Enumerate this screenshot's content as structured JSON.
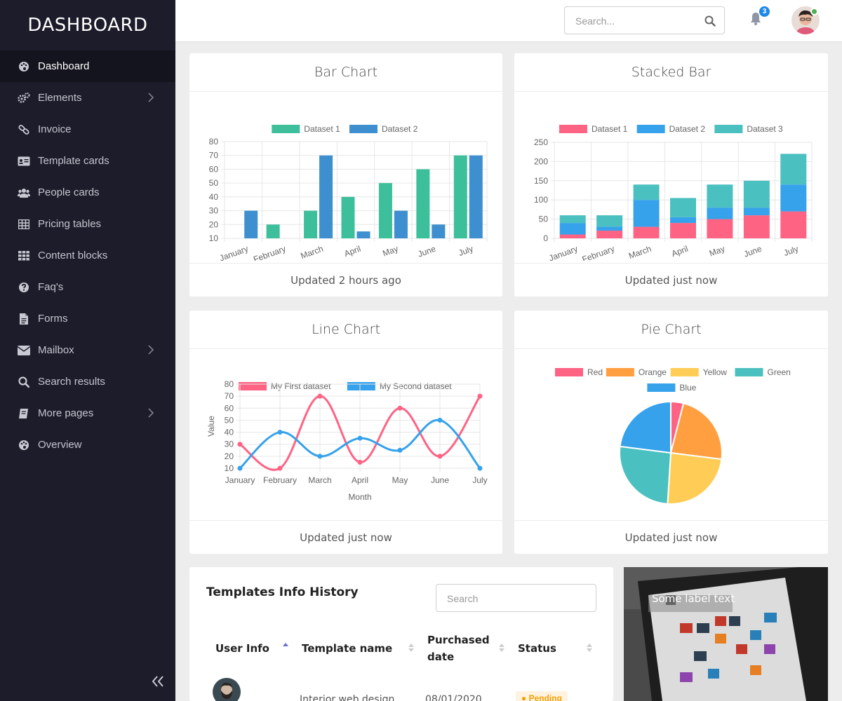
{
  "brand": "DASHBOARD",
  "sidebar": {
    "items": [
      {
        "label": "Dashboard",
        "icon": "palette-icon"
      },
      {
        "label": "Elements",
        "icon": "cogs-icon"
      },
      {
        "label": "Invoice",
        "icon": "link-icon"
      },
      {
        "label": "Template cards",
        "icon": "id-card-icon"
      },
      {
        "label": "People cards",
        "icon": "users-icon"
      },
      {
        "label": "Pricing tables",
        "icon": "table-icon"
      },
      {
        "label": "Content blocks",
        "icon": "grid-icon"
      },
      {
        "label": "Faq's",
        "icon": "question-icon"
      },
      {
        "label": "Forms",
        "icon": "file-icon"
      },
      {
        "label": "Mailbox",
        "icon": "envelope-icon"
      },
      {
        "label": "Search results",
        "icon": "search-icon"
      },
      {
        "label": "More pages",
        "icon": "book-icon"
      },
      {
        "label": "Overview",
        "icon": "palette-icon"
      }
    ]
  },
  "header": {
    "search_placeholder": "Search...",
    "notification_count": "3"
  },
  "cards": {
    "bar": {
      "title": "Bar Chart",
      "footer": "Updated 2 hours ago"
    },
    "stacked": {
      "title": "Stacked Bar",
      "footer": "Updated just now"
    },
    "line": {
      "title": "Line Chart",
      "footer": "Updated just now"
    },
    "pie": {
      "title": "Pie Chart",
      "footer": "Updated just now"
    }
  },
  "chart_data": [
    {
      "type": "bar",
      "categories": [
        "January",
        "February",
        "March",
        "April",
        "May",
        "June",
        "July"
      ],
      "series": [
        {
          "name": "Dataset 1",
          "color": "#3dbf9b",
          "values": [
            null,
            20,
            30,
            40,
            50,
            60,
            70
          ]
        },
        {
          "name": "Dataset 2",
          "color": "#3d8fcf",
          "values": [
            30,
            null,
            70,
            15,
            30,
            20,
            70
          ]
        }
      ],
      "ylim": [
        10,
        80
      ],
      "yticks": [
        10,
        20,
        30,
        40,
        50,
        60,
        70,
        80
      ],
      "legend": "top"
    },
    {
      "type": "bar",
      "stacked": true,
      "categories": [
        "January",
        "February",
        "March",
        "April",
        "May",
        "June",
        "July"
      ],
      "series": [
        {
          "name": "Dataset 1",
          "color": "#ff6384",
          "values": [
            10,
            20,
            30,
            40,
            50,
            60,
            70
          ]
        },
        {
          "name": "Dataset 2",
          "color": "#36a2eb",
          "values": [
            30,
            10,
            70,
            15,
            30,
            20,
            70
          ]
        },
        {
          "name": "Dataset 3",
          "color": "#4bc0c0",
          "values": [
            20,
            30,
            40,
            50,
            60,
            70,
            80
          ]
        }
      ],
      "ylim": [
        0,
        250
      ],
      "yticks": [
        0,
        50,
        100,
        150,
        200,
        250
      ],
      "legend": "top"
    },
    {
      "type": "line",
      "categories": [
        "January",
        "February",
        "March",
        "April",
        "May",
        "June",
        "July"
      ],
      "series": [
        {
          "name": "My First dataset",
          "color": "#ff6384",
          "values": [
            30,
            10,
            70,
            15,
            60,
            20,
            70
          ]
        },
        {
          "name": "My Second dataset",
          "color": "#36a2eb",
          "values": [
            10,
            40,
            20,
            35,
            25,
            50,
            10
          ]
        }
      ],
      "xlabel": "Month",
      "ylabel": "Value",
      "ylim": [
        10,
        80
      ],
      "yticks": [
        10,
        20,
        30,
        40,
        50,
        60,
        70,
        80
      ],
      "legend": "top"
    },
    {
      "type": "pie",
      "categories": [
        "Red",
        "Orange",
        "Yellow",
        "Green",
        "Blue"
      ],
      "values": [
        4,
        23,
        24,
        26,
        23
      ],
      "colors": [
        "#ff6384",
        "#ff9f40",
        "#ffcd56",
        "#4bc0c0",
        "#36a2eb"
      ],
      "legend": "top"
    }
  ],
  "table": {
    "title": "Templates Info History",
    "search_placeholder": "Search",
    "columns": [
      "User Info",
      "Template name",
      "Purchased",
      "date",
      "Status"
    ],
    "rows": [
      {
        "template": "Interior web design",
        "date": "08/01/2020",
        "status": "Pending"
      }
    ]
  },
  "image_card": {
    "label": "Some label text"
  }
}
